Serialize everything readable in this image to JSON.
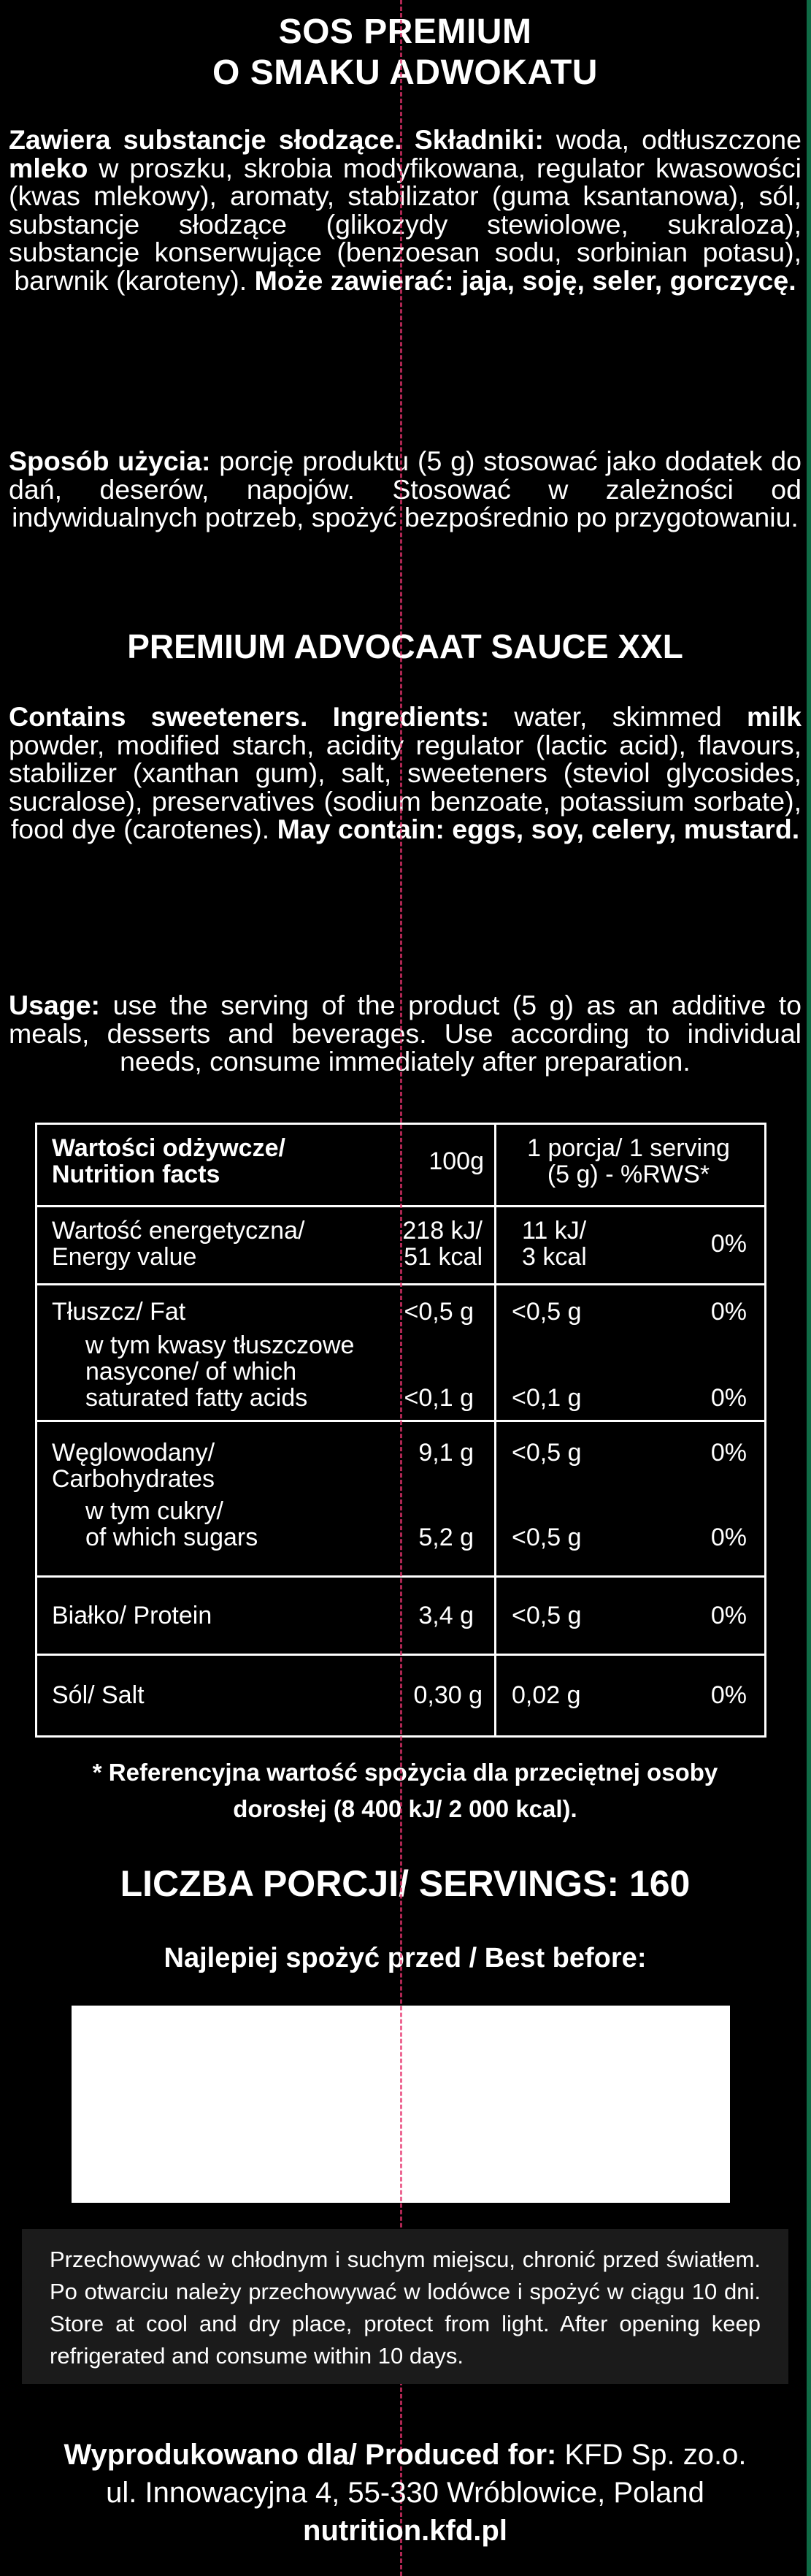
{
  "pl": {
    "title_1": "SOS PREMIUM",
    "title_2": "O SMAKU ADWOKATU",
    "ingredients_bold": "Zawiera substancje słodzące. Składniki:",
    "ingredients_a": " woda, odtłuszczone ",
    "ingredients_milk": "mleko",
    "ingredients_b": " w proszku, skrobia modyfikowana, regulator kwasowości (kwas mlekowy), aromaty, stabilizator (guma ksantanowa), sól, substancje słodzące (glikozydy stewiolowe, sukraloza), substancje konserwujące (benzoesan sodu, sorbinian potasu), barwnik (karoteny). ",
    "may_contain_bold": "Może zawierać: jaja, soję, seler, gorczycę.",
    "usage_bold": "Sposób użycia:",
    "usage_text": " porcję produktu (5 g) stosować jako dodatek do dań, deserów, napojów. Stosować w zależności od indywidualnych potrzeb, spożyć bezpośrednio po przygotowaniu."
  },
  "en": {
    "title": "PREMIUM ADVOCAAT SAUCE XXL",
    "ingredients_bold": "Contains sweeteners. Ingredients:",
    "ingredients_a": " water, skimmed ",
    "ingredients_milk": "milk",
    "ingredients_b": " powder, modified starch, acidity regulator (lactic acid), flavours, stabilizer (xanthan gum), salt, sweeteners (steviol glycosides, sucralose), preservatives (sodium benzoate, potassium sorbate), food dye (carotenes). ",
    "may_contain_bold": "May contain: eggs, soy, celery, mustard.",
    "usage_bold": "Usage:",
    "usage_text": " use the serving of the product (5 g) as an additive to meals, desserts and beverages. Use according to individual needs, consume immediately after preparation."
  },
  "nutrition": {
    "header_label_1": "Wartości odżywcze/",
    "header_label_2": "Nutrition facts",
    "header_col_100g": "100g",
    "header_col_serving_1": "1 porcja/ 1 serving",
    "header_col_serving_2": "(5 g) - %RWS*",
    "energy_label_1": "Wartość energetyczna/",
    "energy_label_2": "Energy value",
    "energy_100_kj": "218 kJ/",
    "energy_100_kcal": "51  kcal",
    "energy_serv_kj": "11 kJ/",
    "energy_serv_kcal": "3 kcal",
    "energy_rws": "0%",
    "fat_label": "Tłuszcz/ Fat",
    "fat_100": "<0,5 g",
    "fat_serv": "<0,5 g",
    "fat_rws": "0%",
    "sat_label_1": "w tym kwasy tłuszczowe",
    "sat_label_2": "nasycone/ of which",
    "sat_label_3": "saturated fatty acids",
    "sat_100": "<0,1 g",
    "sat_serv": "<0,1 g",
    "sat_rws": "0%",
    "carb_label_1": "Węglowodany/",
    "carb_label_2": "Carbohydrates",
    "carb_100": "9,1 g",
    "carb_serv": "<0,5 g",
    "carb_rws": "0%",
    "sugar_label_1": "w tym cukry/",
    "sugar_label_2": "of which sugars",
    "sugar_100": "5,2 g",
    "sugar_serv": "<0,5 g",
    "sugar_rws": "0%",
    "protein_label": "Białko/ Protein",
    "protein_100": "3,4 g",
    "protein_serv": "<0,5 g",
    "protein_rws": "0%",
    "salt_label": "Sól/ Salt",
    "salt_100": "0,30 g",
    "salt_serv": "0,02 g",
    "salt_rws": "0%"
  },
  "footnote_1": "* Referencyjna wartość spożycia dla przeciętnej osoby",
  "footnote_2": "dorosłej (8 400 kJ/ 2 000 kcal).",
  "servings": "LICZBA PORCJI/ SERVINGS: 160",
  "best_before": "Najlepiej spożyć przed / Best before:",
  "storage": "Przechowywać w chłodnym i suchym miejscu, chronić przed światłem. Po otwarciu należy przechowywać w lodówce i spożyć w ciągu 10 dni. Store at cool and dry place, protect from light. After opening keep refrigerated and consume within 10 days.",
  "producer_bold": "Wyprodukowano dla/ Produced for:",
  "producer_name": " KFD Sp. zo.o.",
  "producer_address": "ul. Innowacyjna 4, 55-330 Wróblowice, Poland",
  "website": "nutrition.kfd.pl",
  "colors": {
    "background": "#000000",
    "accent_strip": "#0f6b45",
    "cut_line": "#e8336e",
    "storage_box": "#1b1b1b"
  }
}
